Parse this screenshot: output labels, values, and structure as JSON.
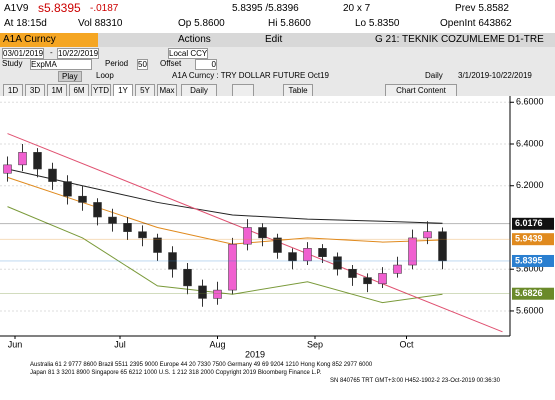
{
  "quote": {
    "ticker": "A1V9",
    "last": "s5.8395",
    "change": "-.0187",
    "bid_ask": "5.8395 /5.8396",
    "size": "20 x 7",
    "prev": "Prev 5.8582",
    "time": "At 18:15d",
    "vol": "Vol 88310",
    "open": "Op 5.8600",
    "high": "Hi 5.8600",
    "low": "Lo 5.8350",
    "open_int": "OpenInt 643862"
  },
  "toolbar": {
    "security": "A1A Curncy",
    "actions": "Actions",
    "edit": "Edit",
    "page": "G 21: TEKNIK COZUMLEME D1-TRE",
    "start": "03/01/2019",
    "dash": "-",
    "end": "10/22/2019",
    "currency": "Local CCY",
    "study_label": "Study",
    "study": "ExpMA",
    "period_label": "Period",
    "period": "50",
    "offset_label": "Offset",
    "offset": "0",
    "play": "Play",
    "loop": "Loop",
    "description": "A1A Curncy : TRY DOLLAR FUTURE Oct19",
    "frequency": "Daily",
    "range": "3/1/2019-10/22/2019",
    "periods": [
      "1D",
      "3D",
      "1M",
      "6M",
      "YTD",
      "1Y",
      "5Y",
      "Max"
    ],
    "period_selected": 5,
    "interval": "Daily",
    "table": "Table",
    "chart_content": "Chart Content"
  },
  "chart_data": {
    "type": "candlestick",
    "ylim": [
      5.48,
      6.63
    ],
    "xlim": [
      -0.5,
      33.5
    ],
    "yticks": [
      {
        "value": 6.6,
        "label": "6.6000"
      },
      {
        "value": 6.4,
        "label": "6.4000"
      },
      {
        "value": 6.2,
        "label": "6.2000"
      },
      {
        "value": 5.8,
        "label": "5.8000"
      },
      {
        "value": 5.6,
        "label": "5.6000"
      }
    ],
    "xticks": [
      {
        "value": 0.5,
        "label": "Jun"
      },
      {
        "value": 7.5,
        "label": "Jul"
      },
      {
        "value": 14,
        "label": "Aug"
      },
      {
        "value": 20.5,
        "label": "Sep"
      },
      {
        "value": 26.6,
        "label": "Oct"
      }
    ],
    "xlabel": "2019",
    "up_color": "#f060d0",
    "down_color": "#222222",
    "candles": [
      [
        6.26,
        6.34,
        6.22,
        6.3
      ],
      [
        6.3,
        6.4,
        6.27,
        6.36
      ],
      [
        6.36,
        6.38,
        6.24,
        6.28
      ],
      [
        6.28,
        6.31,
        6.18,
        6.22
      ],
      [
        6.22,
        6.25,
        6.11,
        6.15
      ],
      [
        6.15,
        6.2,
        6.08,
        6.12
      ],
      [
        6.12,
        6.14,
        6.01,
        6.05
      ],
      [
        6.05,
        6.09,
        5.98,
        6.02
      ],
      [
        6.02,
        6.05,
        5.94,
        5.98
      ],
      [
        5.98,
        6.01,
        5.91,
        5.95
      ],
      [
        5.95,
        5.97,
        5.84,
        5.88
      ],
      [
        5.88,
        5.91,
        5.76,
        5.8
      ],
      [
        5.8,
        5.83,
        5.68,
        5.72
      ],
      [
        5.72,
        5.75,
        5.62,
        5.66
      ],
      [
        5.66,
        5.74,
        5.63,
        5.7
      ],
      [
        5.7,
        5.95,
        5.68,
        5.92
      ],
      [
        5.92,
        6.04,
        5.89,
        6.0
      ],
      [
        6.0,
        6.02,
        5.91,
        5.95
      ],
      [
        5.95,
        5.97,
        5.85,
        5.88
      ],
      [
        5.88,
        5.9,
        5.8,
        5.84
      ],
      [
        5.84,
        5.93,
        5.82,
        5.9
      ],
      [
        5.9,
        5.92,
        5.83,
        5.86
      ],
      [
        5.86,
        5.88,
        5.77,
        5.8
      ],
      [
        5.8,
        5.82,
        5.72,
        5.76
      ],
      [
        5.76,
        5.78,
        5.69,
        5.73
      ],
      [
        5.73,
        5.81,
        5.71,
        5.78
      ],
      [
        5.78,
        5.86,
        5.76,
        5.82
      ],
      [
        5.82,
        5.99,
        5.8,
        5.95
      ],
      [
        5.95,
        6.03,
        5.92,
        5.98
      ],
      [
        5.98,
        6.0,
        5.8,
        5.84
      ]
    ],
    "lines": [
      {
        "color": "#222222",
        "x": [
          0,
          5,
          10,
          15,
          20,
          25,
          29
        ],
        "values": [
          6.28,
          6.2,
          6.12,
          6.06,
          6.04,
          6.03,
          6.02
        ]
      },
      {
        "color": "#e08a1e",
        "x": [
          0,
          5,
          10,
          15,
          20,
          25,
          29
        ],
        "values": [
          6.24,
          6.12,
          6.0,
          5.92,
          5.95,
          5.93,
          5.94
        ]
      },
      {
        "color": "#7a9a3a",
        "x": [
          0,
          5,
          10,
          15,
          20,
          25,
          29
        ],
        "values": [
          6.1,
          5.95,
          5.72,
          5.68,
          5.74,
          5.64,
          5.68
        ]
      },
      {
        "color": "#e05070",
        "x": [
          0,
          33
        ],
        "values": [
          6.45,
          5.5
        ]
      }
    ],
    "price_labels": [
      {
        "value": 6.0176,
        "color": "#111111"
      },
      {
        "value": 5.9439,
        "color": "#e08a1e"
      },
      {
        "value": 5.8395,
        "color": "#2a7fd0"
      },
      {
        "value": 5.6826,
        "color": "#6a8a2a"
      }
    ]
  },
  "footer": [
    "Australia 61 2 9777 8600 Brazil 5511 2395 9000 Europe 44 20 7330 7500 Germany 49 69 9204 1210 Hong Kong 852 2977 6000",
    "Japan 81 3 3201 8900        Singapore 65 6212 1000        U.S. 1 212 318 2000        Copyright 2019 Bloomberg Finance L.P.",
    "SN 840765 TRT  GMT+3:00 H452-1902-2 23-Oct-2019 00:36:30"
  ]
}
